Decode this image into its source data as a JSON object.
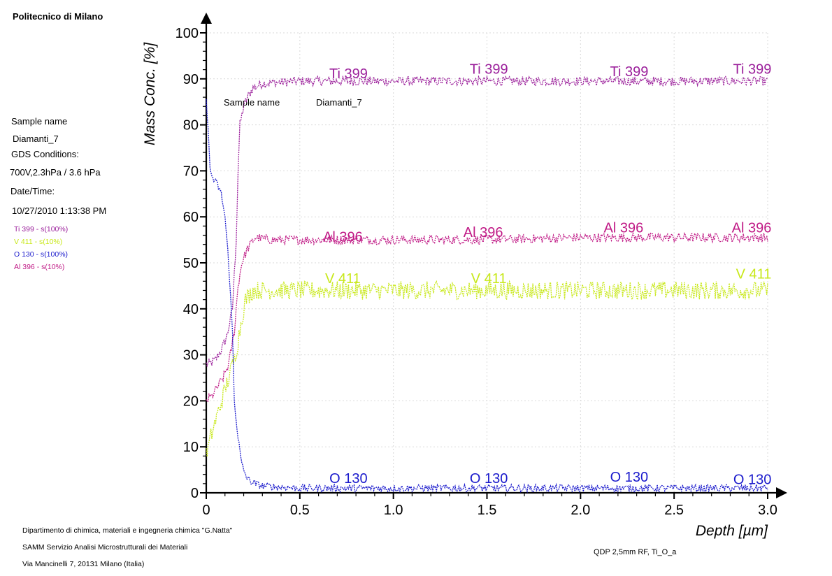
{
  "header": {
    "institution": "Politecnico di Milano",
    "sample_name_label": "Sample name",
    "sample_name_value": "Diamanti_7",
    "gds_label": "GDS Conditions:",
    "gds_value": "700V,2.3hPa / 3.6 hPa",
    "date_label": "Date/Time:",
    "date_value": "10/27/2010 1:13:38 PM"
  },
  "legend": [
    {
      "label": "Ti 399 - s(100%)",
      "color": "#9b1f9b"
    },
    {
      "label": "V 411 - s(10%)",
      "color": "#c8e81a"
    },
    {
      "label": "O 130 - s(100%)",
      "color": "#1a1acc"
    },
    {
      "label": "Al 396 - s(10%)",
      "color": "#c01a86"
    }
  ],
  "footer": {
    "department": "Dipartimento di chimica, materiali e ingegneria chimica \"G.Natta\"",
    "samm": "SAMM Servizio Analisi Microstrutturali dei Materiali",
    "address": "Via Mancinelli 7, 20131 Milano (Italia)",
    "method": "QDP 2,5mm RF, Ti_O_a"
  },
  "chart_data": {
    "type": "line",
    "xlabel": "Depth [µm]",
    "ylabel": "Mass Conc. [%]",
    "xlim": [
      0,
      3.0
    ],
    "ylim": [
      0,
      100
    ],
    "xticks": [
      "0",
      "0.5",
      "1.0",
      "1.5",
      "2.0",
      "2.5",
      "3.0"
    ],
    "yticks": [
      "0",
      "10",
      "20",
      "30",
      "40",
      "50",
      "60",
      "70",
      "80",
      "90",
      "100"
    ],
    "grid": true,
    "inset_text": {
      "label": "Sample name",
      "value": "Diamanti_7"
    },
    "series": [
      {
        "name": "Ti 399",
        "color": "#9b1f9b",
        "x": [
          0,
          0.02,
          0.05,
          0.08,
          0.11,
          0.14,
          0.16,
          0.17,
          0.18,
          0.2,
          0.22,
          0.25,
          0.3,
          0.5,
          1.0,
          1.5,
          2.0,
          2.5,
          3.0
        ],
        "y": [
          28,
          28,
          29,
          31,
          34,
          40,
          55,
          70,
          80,
          84,
          86,
          88,
          89,
          89.5,
          89.5,
          89.5,
          89.5,
          89.5,
          89.5
        ],
        "noise": 1.0,
        "labels": [
          "Ti 399",
          "Ti 399",
          "Ti 399",
          "Ti 399"
        ],
        "label_x": [
          0.76,
          1.51,
          2.26,
          3.02
        ],
        "label_y": [
          89.5,
          90.5,
          90.0,
          90.5
        ]
      },
      {
        "name": "Al 396",
        "color": "#c01a86",
        "x": [
          0,
          0.03,
          0.06,
          0.09,
          0.12,
          0.15,
          0.17,
          0.19,
          0.22,
          0.26,
          0.35,
          0.5,
          1.0,
          1.5,
          2.0,
          2.5,
          3.0
        ],
        "y": [
          20,
          21,
          23,
          25,
          28,
          35,
          45,
          50,
          53,
          55.5,
          55,
          55,
          55,
          55,
          55.5,
          55.5,
          55.5
        ],
        "noise": 1.0,
        "labels": [
          "Al 396",
          "Al 396",
          "Al 396",
          "Al 396"
        ],
        "label_x": [
          0.73,
          1.48,
          2.23,
          3.02
        ],
        "label_y": [
          54,
          55,
          56,
          56
        ]
      },
      {
        "name": "V 411",
        "color": "#c8e81a",
        "x": [
          0,
          0.03,
          0.06,
          0.09,
          0.12,
          0.15,
          0.17,
          0.19,
          0.21,
          0.25,
          0.3,
          0.5,
          1.0,
          1.5,
          2.0,
          2.5,
          3.0
        ],
        "y": [
          8,
          13,
          17,
          21,
          25,
          29,
          33,
          38,
          42,
          44,
          44,
          44,
          44,
          44,
          44,
          44,
          44
        ],
        "noise": 2.0,
        "labels": [
          "V 411",
          "V 411",
          "V 411"
        ],
        "label_x": [
          0.73,
          1.51,
          3.02
        ],
        "label_y": [
          45,
          45,
          46
        ]
      },
      {
        "name": "O 130",
        "color": "#1a1acc",
        "x": [
          0,
          0.01,
          0.02,
          0.04,
          0.06,
          0.08,
          0.1,
          0.12,
          0.14,
          0.15,
          0.17,
          0.19,
          0.22,
          0.26,
          0.3,
          0.5,
          1.0,
          1.5,
          2.0,
          2.5,
          3.0
        ],
        "y": [
          85,
          80,
          70,
          68,
          67,
          65,
          60,
          50,
          35,
          20,
          12,
          6,
          3,
          2,
          1.5,
          1,
          1,
          1,
          1,
          1,
          1
        ],
        "noise": 0.8,
        "labels": [
          "O 130",
          "O 130",
          "O 130",
          "O 130"
        ],
        "label_x": [
          0.76,
          1.51,
          2.26,
          3.02
        ],
        "label_y": [
          1.5,
          1.5,
          1.8,
          1.3
        ]
      }
    ]
  }
}
